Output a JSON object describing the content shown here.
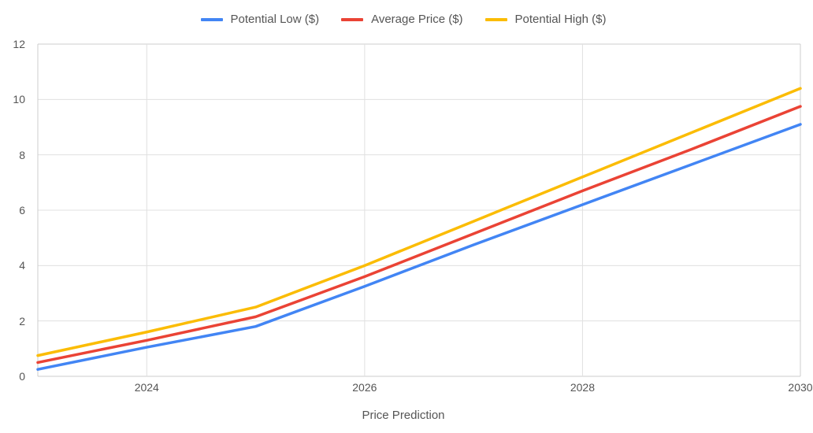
{
  "chart": {
    "type": "line",
    "x_label": "Price Prediction",
    "x_values": [
      2023,
      2024,
      2025,
      2026,
      2027,
      2028,
      2029,
      2030
    ],
    "x_ticks": [
      2024,
      2026,
      2028,
      2030
    ],
    "xlim": [
      2023,
      2030
    ],
    "y_ticks": [
      0,
      2,
      4,
      6,
      8,
      10,
      12
    ],
    "ylim": [
      0,
      12
    ],
    "background_color": "#ffffff",
    "grid_color": "#e0e0e0",
    "border_color": "#cccccc",
    "line_width": 3.5,
    "label_fontsize": 15,
    "tick_fontsize": 14,
    "legend_position": "top-center",
    "series": [
      {
        "key": "potential_low",
        "label": "Potential Low ($)",
        "color": "#4285f4",
        "values": [
          0.25,
          1.05,
          1.8,
          3.25,
          4.75,
          6.2,
          7.65,
          9.1
        ]
      },
      {
        "key": "average_price",
        "label": "Average Price ($)",
        "color": "#ea4335",
        "values": [
          0.5,
          1.3,
          2.15,
          3.6,
          5.15,
          6.7,
          8.2,
          9.75
        ]
      },
      {
        "key": "potential_high",
        "label": "Potential High ($)",
        "color": "#fbbc04",
        "values": [
          0.75,
          1.6,
          2.5,
          4.0,
          5.6,
          7.2,
          8.8,
          10.4
        ]
      }
    ]
  }
}
